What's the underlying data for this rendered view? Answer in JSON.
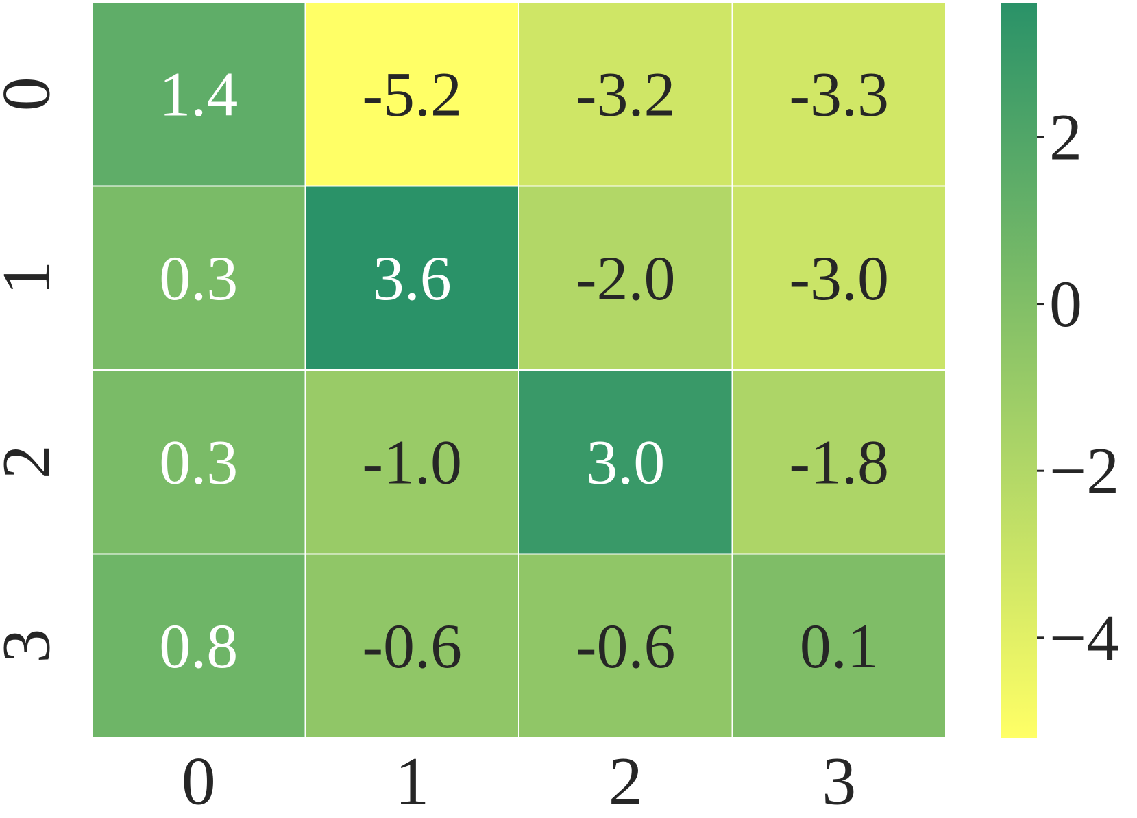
{
  "chart_data": {
    "type": "heatmap",
    "categories": [
      "0",
      "1",
      "2",
      "3"
    ],
    "row_categories": [
      "0",
      "1",
      "2",
      "3"
    ],
    "values": [
      [
        1.4,
        -5.2,
        -3.2,
        -3.3
      ],
      [
        0.3,
        3.6,
        -2.0,
        -3.0
      ],
      [
        0.3,
        -1.0,
        3.0,
        -1.8
      ],
      [
        0.8,
        -0.6,
        -0.6,
        0.1
      ]
    ],
    "value_labels": [
      [
        "1.4",
        "-5.2",
        "-3.2",
        "-3.3"
      ],
      [
        "0.3",
        "3.6",
        "-2.0",
        "-3.0"
      ],
      [
        "0.3",
        "-1.0",
        "3.0",
        "-1.8"
      ],
      [
        "0.8",
        "-0.6",
        "-0.6",
        "0.1"
      ]
    ],
    "colormap": [
      "#ffff66",
      "#2a9268"
    ],
    "clim": [
      -5.2,
      3.6
    ],
    "cticks": [
      2,
      0,
      {
        "value": -2,
        "label": "−2"
      },
      {
        "value": -4,
        "label": "−4"
      }
    ]
  }
}
